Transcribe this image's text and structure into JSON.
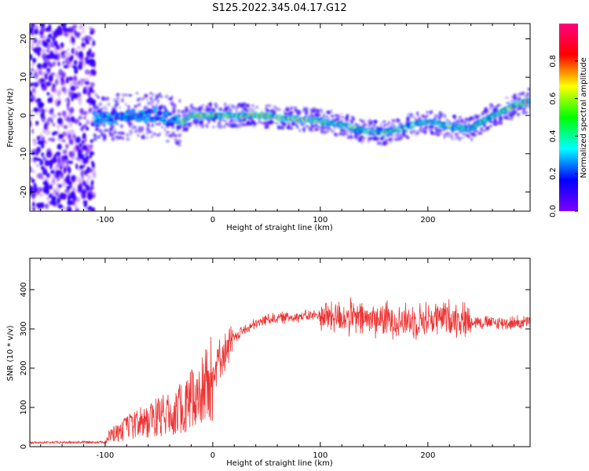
{
  "title": "S125.2022.345.04.17.G12",
  "chart_data": [
    {
      "type": "heatmap",
      "xlabel": "Height of straight line (km)",
      "ylabel": "Frequency (Hz)",
      "xlim": [
        -170,
        295
      ],
      "ylim": [
        -25,
        24
      ],
      "xticks": [
        -100,
        0,
        100,
        200
      ],
      "yticks": [
        -20,
        -10,
        0,
        10,
        20
      ],
      "colorbar": {
        "label": "Normalized spectral amplitude",
        "range": [
          0,
          1
        ],
        "ticks": [
          "0.0",
          "0.2",
          "0.4",
          "0.6",
          "0.8"
        ],
        "colormap": [
          "#8000ff",
          "#0000ff",
          "#00ffff",
          "#00ff00",
          "#ffff00",
          "#ff0000",
          "#ff0080"
        ]
      },
      "ridge": {
        "x": [
          -110,
          -90,
          -70,
          -50,
          -40,
          -30,
          -20,
          0,
          20,
          40,
          60,
          80,
          100,
          120,
          140,
          160,
          180,
          200,
          220,
          240,
          260,
          280,
          295
        ],
        "y": [
          -0.5,
          -0.5,
          0,
          0,
          -1,
          -2,
          0,
          0,
          0,
          0,
          -0.5,
          -1,
          -1.5,
          -2.5,
          -4,
          -4.5,
          -3,
          -1.5,
          -3,
          -3.5,
          0,
          2.5,
          4
        ]
      },
      "noise_region_x": [
        -170,
        -110
      ]
    },
    {
      "type": "line",
      "xlabel": "Height of straight line (km)",
      "ylabel": "SNR (10 * v/v)",
      "xlim": [
        -170,
        295
      ],
      "ylim": [
        0,
        480
      ],
      "xticks": [
        -100,
        0,
        100,
        200
      ],
      "yticks": [
        0,
        100,
        200,
        300,
        400
      ],
      "color": "#ee3333",
      "envelope": {
        "x": [
          -170,
          -100,
          -95,
          -80,
          -60,
          -40,
          -25,
          -15,
          -5,
          5,
          15,
          25,
          35,
          50,
          70,
          100,
          120,
          140,
          160,
          180,
          200,
          220,
          240,
          260,
          280,
          295
        ],
        "y": [
          10,
          12,
          30,
          50,
          70,
          90,
          110,
          140,
          160,
          220,
          255,
          290,
          305,
          325,
          330,
          335,
          330,
          325,
          325,
          320,
          325,
          330,
          320,
          315,
          315,
          318
        ]
      }
    }
  ]
}
